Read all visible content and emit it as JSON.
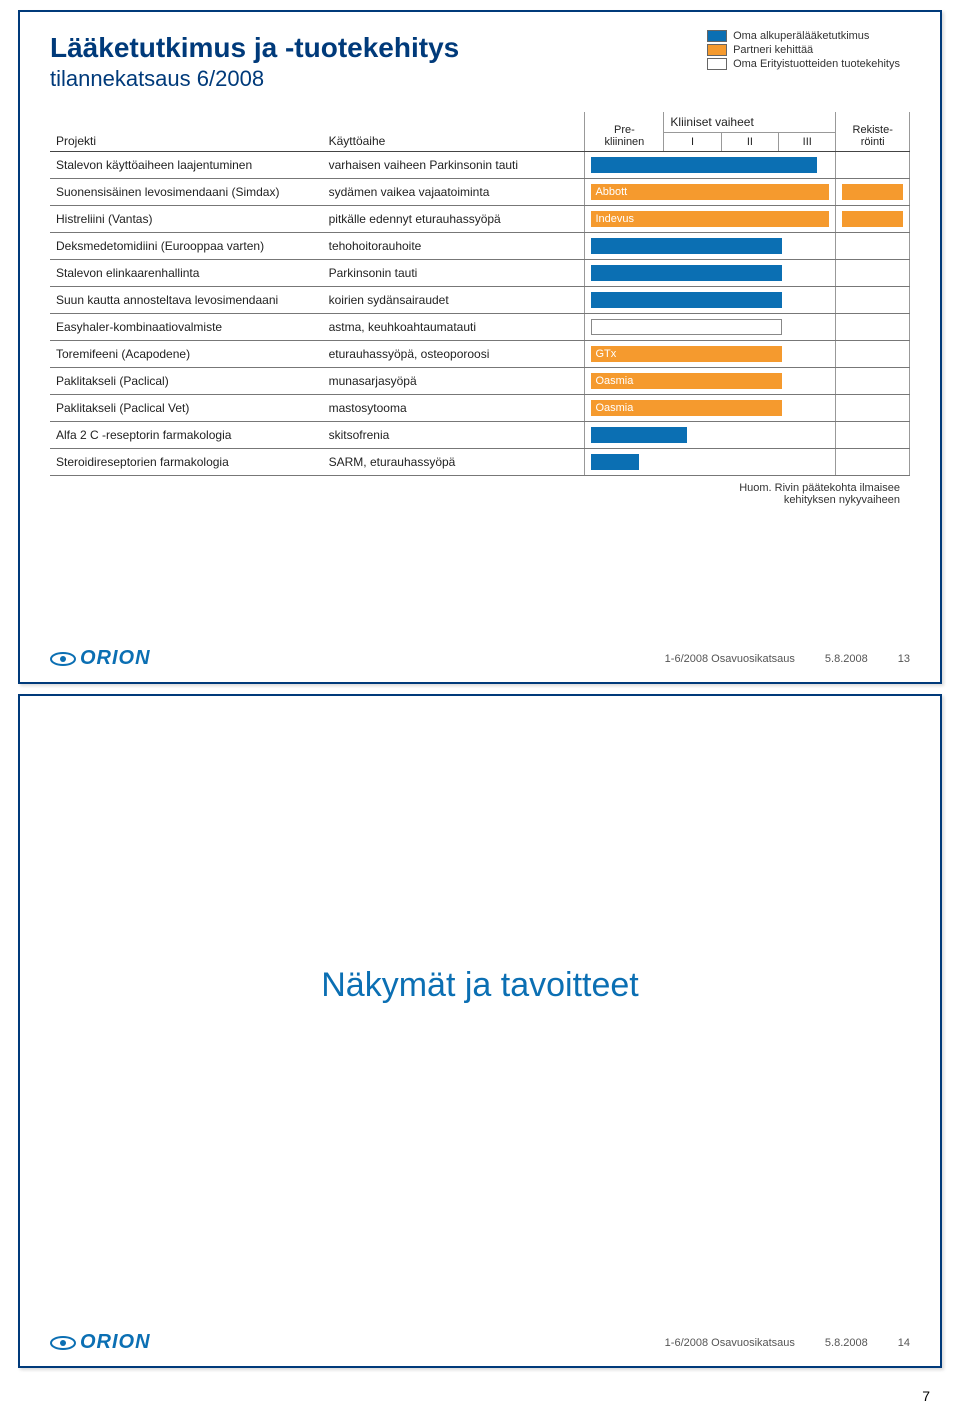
{
  "slide1": {
    "title": "Lääketutkimus ja -tuotekehitys",
    "subtitle": "tilannekatsaus 6/2008",
    "legend": {
      "own": "Oma alkuperälääketutkimus",
      "partner": "Partneri kehittää",
      "specialty": "Oma Erityistuotteiden tuotekehitys"
    },
    "columns": {
      "project": "Projekti",
      "indication": "Käyttöaihe",
      "preclinical": "Pre-\nkliininen",
      "clinical_header": "Kliiniset vaiheet",
      "phase1": "I",
      "phase2": "II",
      "phase3": "III",
      "registration": "Rekiste-\nröinti"
    },
    "rows": [
      {
        "project": "Stalevon käyttöaiheen laajentuminen",
        "indication": "varhaisen vaiheen Parkinsonin tauti",
        "bar": {
          "type": "own",
          "extent_pct": 95,
          "label": ""
        }
      },
      {
        "project": "Suonensisäinen levosimendaani (Simdax)",
        "indication": "sydämen vaikea vajaatoiminta",
        "bar": {
          "type": "partner",
          "extent_pct": 100,
          "label": "Abbott"
        }
      },
      {
        "project": "Histreliini (Vantas)",
        "indication": "pitkälle edennyt eturauhassyöpä",
        "bar": {
          "type": "partner",
          "extent_pct": 100,
          "label": "Indevus"
        }
      },
      {
        "project": "Deksmedetomidiini (Eurooppaa varten)",
        "indication": "tehohoitorauhoite",
        "bar": {
          "type": "own",
          "extent_pct": 80,
          "label": ""
        }
      },
      {
        "project": "Stalevon elinkaarenhallinta",
        "indication": "Parkinsonin tauti",
        "bar": {
          "type": "own",
          "extent_pct": 80,
          "label": ""
        }
      },
      {
        "project": "Suun kautta annosteltava levosimendaani",
        "indication": "koirien sydänsairaudet",
        "bar": {
          "type": "own",
          "extent_pct": 80,
          "label": ""
        }
      },
      {
        "project": "Easyhaler-kombinaatiovalmiste",
        "indication": "astma, keuhkoahtaumatauti",
        "bar": {
          "type": "specialty",
          "extent_pct": 80,
          "label": ""
        }
      },
      {
        "project": "Toremifeeni (Acapodene)",
        "indication": "eturauhassyöpä, osteoporoosi",
        "bar": {
          "type": "partner",
          "extent_pct": 80,
          "label": "GTx"
        }
      },
      {
        "project": "Paklitakseli (Paclical)",
        "indication": "munasarjasyöpä",
        "bar": {
          "type": "partner",
          "extent_pct": 80,
          "label": "Oasmia"
        }
      },
      {
        "project": "Paklitakseli (Paclical Vet)",
        "indication": "mastosytooma",
        "bar": {
          "type": "partner",
          "extent_pct": 80,
          "label": "Oasmia"
        }
      },
      {
        "project": "Alfa 2 C -reseptorin farmakologia",
        "indication": "skitsofrenia",
        "bar": {
          "type": "own",
          "extent_pct": 40,
          "label": ""
        }
      },
      {
        "project": "Steroidireseptorien farmakologia",
        "indication": "SARM, eturauhassyöpä",
        "bar": {
          "type": "own",
          "extent_pct": 20,
          "label": ""
        }
      }
    ],
    "footnote1": "Huom. Rivin päätekohta ilmaisee",
    "footnote2": "kehityksen nykyvaiheen",
    "colors": {
      "own": "#0b6fb3",
      "partner": "#f59a2e",
      "specialty": "#ffffff",
      "brand": "#003a7a",
      "text": "#222222"
    }
  },
  "slide2": {
    "title": "Näkymät ja tavoitteet"
  },
  "footer": {
    "doc": "1-6/2008 Osavuosikatsaus",
    "date": "5.8.2008",
    "page1": "13",
    "page2": "14",
    "company": "ORION"
  },
  "page_corner": "7"
}
